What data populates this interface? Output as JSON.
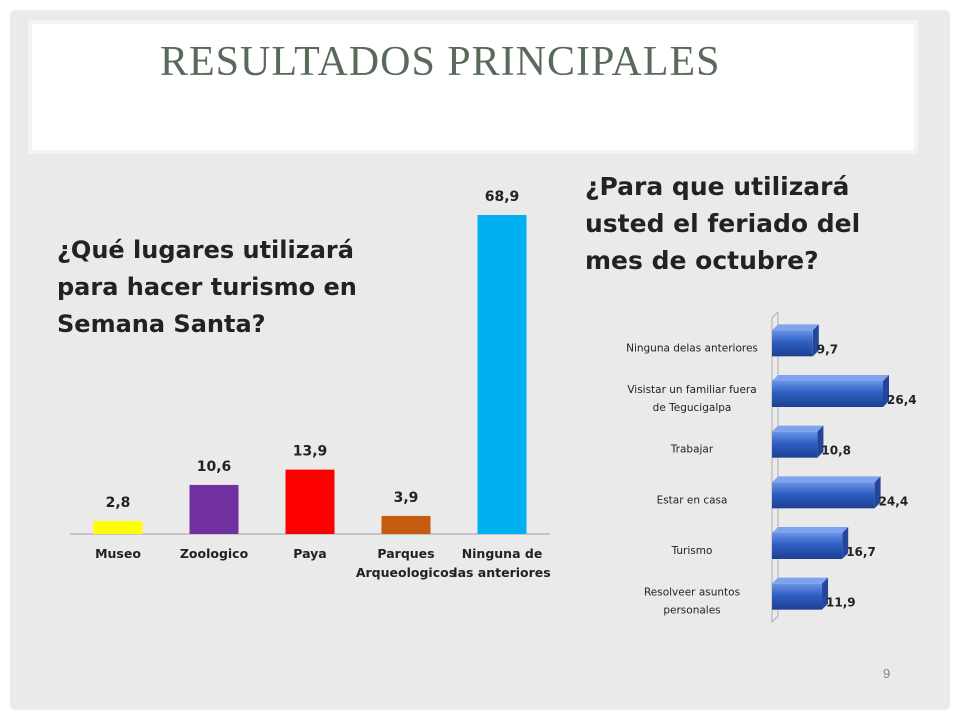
{
  "slide": {
    "title": "RESULTADOS PRINCIPALES",
    "page_number": "9"
  },
  "questions": {
    "q1": "¿Qué lugares utilizará para hacer turismo en Semana Santa?",
    "q2": "¿Para que utilizará usted el feriado del mes de octubre?"
  },
  "chart_data": [
    {
      "type": "bar",
      "title": "",
      "categories": [
        "Museo",
        "Zoologico",
        "Paya",
        "Parques\nArqueologicos",
        "Ninguna de\nlas anteriores"
      ],
      "values": [
        2.8,
        10.6,
        13.9,
        3.9,
        68.9
      ],
      "value_labels": [
        "2,8",
        "10,6",
        "13,9",
        "3,9",
        "68,9"
      ],
      "colors": [
        "#ffff00",
        "#7030a0",
        "#ff0000",
        "#c55a11",
        "#00b0f0"
      ],
      "ylim": [
        0,
        70
      ],
      "grid": false,
      "legend": "none"
    },
    {
      "type": "bar",
      "orientation": "horizontal",
      "title": "",
      "categories": [
        "Ninguna delas anteriores",
        "Visistar un familiar fuera\nde Tegucigalpa",
        "Trabajar",
        "Estar en casa",
        "Turismo",
        "Resolveer asuntos\npersonales"
      ],
      "values": [
        9.7,
        26.4,
        10.8,
        24.4,
        16.7,
        11.9
      ],
      "value_labels": [
        "9,7",
        "26,4",
        "10,8",
        "24,4",
        "16,7",
        "11,9"
      ],
      "colors": [
        "#2f5fc4"
      ],
      "xlim": [
        0,
        27
      ],
      "grid": false,
      "legend": "none"
    }
  ]
}
